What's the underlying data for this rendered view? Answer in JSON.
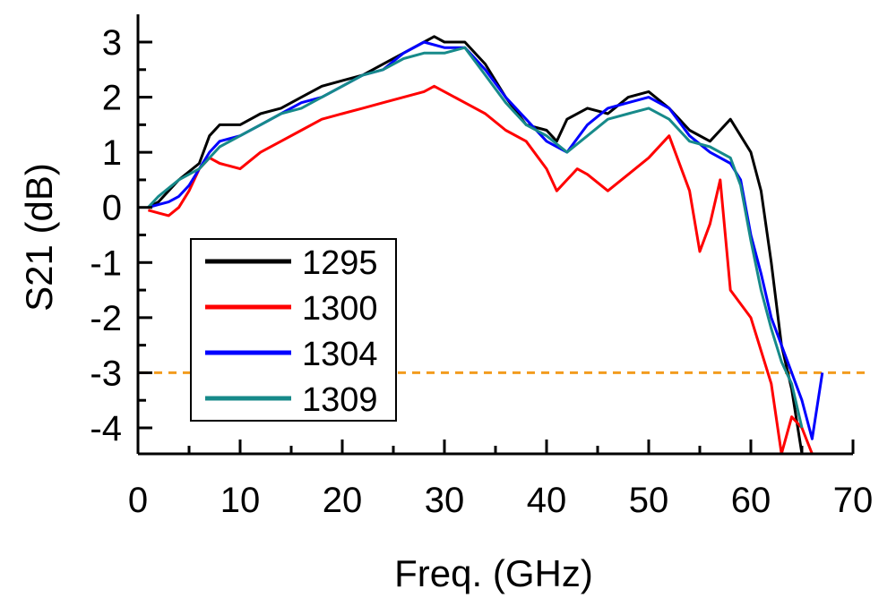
{
  "chart_data": {
    "type": "line",
    "xlabel": "Freq. (GHz)",
    "ylabel": "S21 (dB)",
    "xlim": [
      0,
      70
    ],
    "ylim": [
      -4.5,
      3.4
    ],
    "xticks": [
      "0",
      "10",
      "20",
      "30",
      "40",
      "50",
      "60",
      "70"
    ],
    "yticks": [
      "3",
      "2",
      "1",
      "0",
      "-1",
      "-2",
      "-3",
      "-4"
    ],
    "reference_line": {
      "y": -3,
      "style": "dashed",
      "color": "#f39c1e"
    },
    "legend": {
      "placement": "bottom-left"
    },
    "series": [
      {
        "name": "1295",
        "color": "#000000",
        "x": [
          1,
          2,
          4,
          6,
          7,
          8,
          10,
          12,
          14,
          16,
          18,
          20,
          22,
          24,
          26,
          28,
          29,
          30,
          32,
          34,
          36,
          38,
          40,
          41,
          42,
          44,
          46,
          48,
          50,
          52,
          54,
          56,
          57,
          58,
          60,
          61,
          62,
          63,
          64,
          65
        ],
        "y": [
          0.0,
          0.1,
          0.5,
          0.8,
          1.3,
          1.5,
          1.5,
          1.7,
          1.8,
          2.0,
          2.2,
          2.3,
          2.4,
          2.6,
          2.8,
          3.0,
          3.1,
          3.0,
          3.0,
          2.6,
          2.0,
          1.5,
          1.4,
          1.2,
          1.6,
          1.8,
          1.7,
          2.0,
          2.1,
          1.8,
          1.4,
          1.2,
          1.4,
          1.6,
          1.0,
          0.3,
          -1.0,
          -2.5,
          -3.3,
          -4.5
        ]
      },
      {
        "name": "1300",
        "color": "#ff0000",
        "x": [
          1,
          2,
          3,
          4,
          5,
          6,
          7,
          8,
          10,
          12,
          14,
          16,
          18,
          20,
          22,
          24,
          26,
          28,
          29,
          30,
          32,
          34,
          36,
          38,
          40,
          41,
          42,
          43,
          44,
          46,
          48,
          50,
          52,
          54,
          55,
          56,
          57,
          58,
          60,
          61,
          62,
          63,
          64,
          65,
          66
        ],
        "y": [
          -0.05,
          -0.1,
          -0.15,
          0.0,
          0.3,
          0.7,
          0.9,
          0.8,
          0.7,
          1.0,
          1.2,
          1.4,
          1.6,
          1.7,
          1.8,
          1.9,
          2.0,
          2.1,
          2.2,
          2.1,
          1.9,
          1.7,
          1.4,
          1.2,
          0.7,
          0.3,
          0.5,
          0.7,
          0.6,
          0.3,
          0.6,
          0.9,
          1.3,
          0.3,
          -0.8,
          -0.3,
          0.5,
          -1.5,
          -2.0,
          -2.6,
          -3.2,
          -4.5,
          -3.8,
          -4.0,
          -4.5
        ]
      },
      {
        "name": "1304",
        "color": "#0000ff",
        "x": [
          1,
          2,
          3,
          4,
          5,
          6,
          7,
          8,
          10,
          12,
          14,
          16,
          18,
          20,
          22,
          24,
          26,
          28,
          30,
          32,
          34,
          36,
          38,
          40,
          42,
          44,
          46,
          48,
          50,
          52,
          54,
          56,
          58,
          59,
          60,
          61,
          62,
          63,
          64,
          65,
          66,
          67
        ],
        "y": [
          0.0,
          0.05,
          0.1,
          0.2,
          0.4,
          0.7,
          1.0,
          1.2,
          1.3,
          1.5,
          1.7,
          1.9,
          2.0,
          2.2,
          2.4,
          2.5,
          2.8,
          3.0,
          2.9,
          2.9,
          2.5,
          2.0,
          1.6,
          1.2,
          1.0,
          1.5,
          1.8,
          1.9,
          2.0,
          1.8,
          1.3,
          1.0,
          0.8,
          0.5,
          -0.5,
          -1.2,
          -2.0,
          -2.5,
          -3.0,
          -3.5,
          -4.2,
          -3.0
        ]
      },
      {
        "name": "1309",
        "color": "#178a8a",
        "x": [
          1,
          2,
          4,
          6,
          8,
          10,
          12,
          14,
          16,
          18,
          20,
          22,
          24,
          26,
          28,
          30,
          32,
          34,
          36,
          38,
          40,
          42,
          44,
          46,
          48,
          50,
          52,
          54,
          56,
          58,
          59,
          60,
          61,
          62,
          63,
          64,
          65
        ],
        "y": [
          0.0,
          0.2,
          0.5,
          0.7,
          1.1,
          1.3,
          1.5,
          1.7,
          1.8,
          2.0,
          2.2,
          2.4,
          2.5,
          2.7,
          2.8,
          2.8,
          2.9,
          2.4,
          1.9,
          1.5,
          1.3,
          1.0,
          1.3,
          1.6,
          1.7,
          1.8,
          1.6,
          1.2,
          1.1,
          0.9,
          0.4,
          -0.6,
          -1.5,
          -2.2,
          -2.8,
          -3.2,
          -4.0
        ]
      }
    ]
  }
}
